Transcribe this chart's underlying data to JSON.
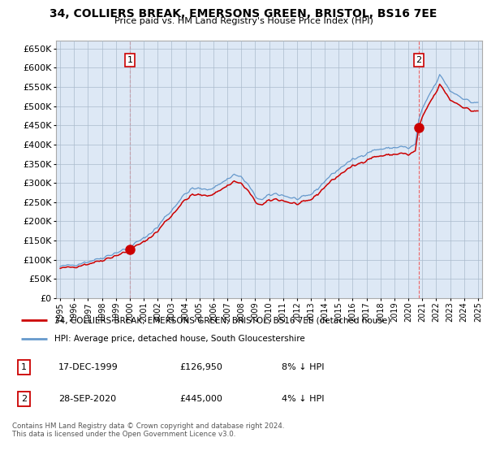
{
  "title": "34, COLLIERS BREAK, EMERSONS GREEN, BRISTOL, BS16 7EE",
  "subtitle": "Price paid vs. HM Land Registry's House Price Index (HPI)",
  "background_color": "#ffffff",
  "chart_bg_color": "#dde8f5",
  "grid_color": "#aabbcc",
  "hpi_color": "#6699cc",
  "price_color": "#cc0000",
  "vline_color": "#ee6666",
  "legend_label_price": "34, COLLIERS BREAK, EMERSONS GREEN, BRISTOL, BS16 7EE (detached house)",
  "legend_label_hpi": "HPI: Average price, detached house, South Gloucestershire",
  "sale1_label": "1",
  "sale1_date": "17-DEC-1999",
  "sale1_price": "£126,950",
  "sale1_hpi": "8% ↓ HPI",
  "sale2_label": "2",
  "sale2_date": "28-SEP-2020",
  "sale2_price": "£445,000",
  "sale2_hpi": "4% ↓ HPI",
  "footer": "Contains HM Land Registry data © Crown copyright and database right 2024.\nThis data is licensed under the Open Government Licence v3.0.",
  "sale1_x": 2000.0,
  "sale1_y": 126950,
  "sale2_x": 2020.75,
  "sale2_y": 445000,
  "ylim": [
    0,
    670000
  ],
  "yticks": [
    0,
    50000,
    100000,
    150000,
    200000,
    250000,
    300000,
    350000,
    400000,
    450000,
    500000,
    550000,
    600000,
    650000
  ],
  "xlim_min": 1994.7,
  "xlim_max": 2025.3
}
